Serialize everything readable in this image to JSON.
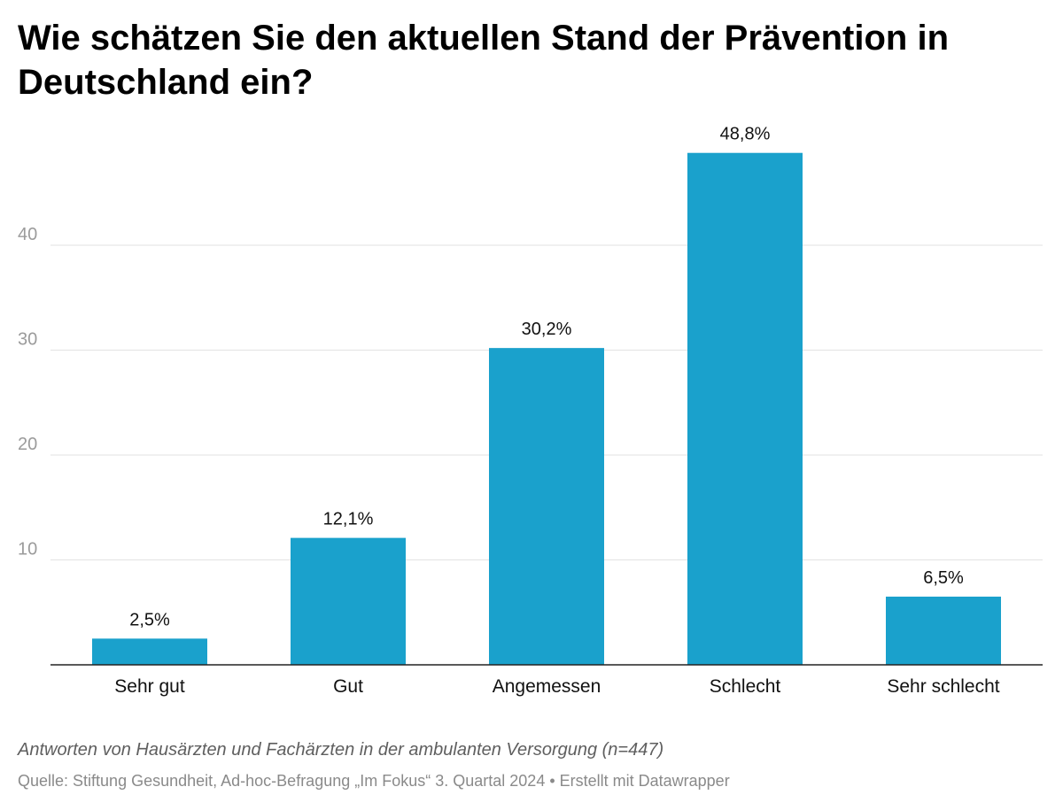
{
  "chart_data": {
    "type": "bar",
    "title": "Wie schätzen Sie den aktuellen Stand der Prävention in Deutschland ein?",
    "categories": [
      "Sehr gut",
      "Gut",
      "Angemessen",
      "Schlecht",
      "Sehr schlecht"
    ],
    "values": [
      2.5,
      12.1,
      30.2,
      48.8,
      6.5
    ],
    "value_labels": [
      "2,5%",
      "12,1%",
      "30,2%",
      "48,8%",
      "6,5%"
    ],
    "yticks": [
      10,
      20,
      30,
      40
    ],
    "ylim": [
      0,
      50
    ],
    "grid": true,
    "xlabel": "",
    "ylabel": "",
    "bar_color": "#1aa1cc",
    "note": "Antworten von Hausärzten und Fachärzten in der ambulanten Versorgung (n=447)",
    "source": "Quelle: Stiftung Gesundheit, Ad-hoc-Befragung „Im Fokus“ 3. Quartal 2024 • Erstellt mit Datawrapper"
  }
}
